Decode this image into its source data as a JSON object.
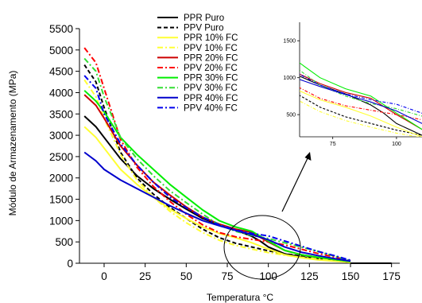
{
  "chart_data": {
    "type": "line",
    "xlabel": "Temperatura °C",
    "ylabel": "Módulo de Armazenamento (MPa)",
    "xlim": [
      -15,
      180
    ],
    "ylim": [
      0,
      5500
    ],
    "x_ticks": [
      0,
      25,
      50,
      75,
      100,
      125,
      150,
      175
    ],
    "y_ticks": [
      0,
      500,
      1000,
      1500,
      2000,
      2500,
      3000,
      3500,
      4000,
      4500,
      5000,
      5500
    ],
    "grid": false,
    "legend_position": "top-center",
    "series": [
      {
        "name": "PPR Puro",
        "color": "#000000",
        "dash": "solid",
        "x": [
          -12,
          -5,
          0,
          10,
          20,
          30,
          40,
          50,
          60,
          70,
          80,
          90,
          95,
          100,
          110,
          120,
          130,
          140,
          150
        ],
        "y": [
          3450,
          3200,
          2950,
          2450,
          2050,
          1750,
          1500,
          1270,
          1050,
          900,
          780,
          630,
          520,
          380,
          220,
          150,
          100,
          60,
          30
        ]
      },
      {
        "name": "PPV Puro",
        "color": "#000000",
        "dash": "dashed",
        "x": [
          -12,
          -5,
          0,
          10,
          20,
          30,
          40,
          50,
          60,
          70,
          80,
          90,
          100,
          110,
          120,
          130,
          140,
          150
        ],
        "y": [
          4650,
          4250,
          3650,
          2600,
          2000,
          1620,
          1310,
          1050,
          800,
          600,
          470,
          380,
          290,
          220,
          170,
          120,
          80,
          40
        ]
      },
      {
        "name": "PPR 10% FC",
        "color": "#ffff33",
        "dash": "solid",
        "x": [
          -12,
          -5,
          0,
          10,
          20,
          30,
          40,
          50,
          60,
          70,
          80,
          90,
          100,
          110,
          120,
          130,
          140,
          150
        ],
        "y": [
          3200,
          2950,
          2700,
          2200,
          1850,
          1550,
          1270,
          1050,
          850,
          700,
          600,
          480,
          330,
          200,
          130,
          80,
          50,
          20
        ]
      },
      {
        "name": "PPV 10% FC",
        "color": "#ffff33",
        "dash": "dashdot",
        "x": [
          -12,
          -5,
          0,
          10,
          20,
          30,
          40,
          50,
          60,
          70,
          80,
          90,
          100,
          110,
          120,
          130,
          140,
          150
        ],
        "y": [
          4300,
          3900,
          3400,
          2550,
          1950,
          1550,
          1220,
          950,
          720,
          540,
          420,
          330,
          250,
          190,
          140,
          100,
          60,
          30
        ]
      },
      {
        "name": "PPR 20% FC",
        "color": "#cc0000",
        "dash": "solid",
        "x": [
          -12,
          -5,
          0,
          10,
          20,
          30,
          40,
          50,
          60,
          70,
          80,
          90,
          100,
          110,
          120,
          130,
          140,
          150
        ],
        "y": [
          3950,
          3700,
          3400,
          2750,
          2300,
          1900,
          1600,
          1320,
          1080,
          920,
          800,
          720,
          500,
          300,
          200,
          140,
          90,
          40
        ]
      },
      {
        "name": "PPV 20% FC",
        "color": "#ff0000",
        "dash": "dashdot",
        "x": [
          -12,
          -5,
          0,
          10,
          20,
          30,
          40,
          50,
          60,
          70,
          80,
          90,
          100,
          110,
          120,
          130,
          140,
          150
        ],
        "y": [
          5050,
          4700,
          4100,
          2900,
          2250,
          1800,
          1450,
          1150,
          900,
          720,
          620,
          560,
          500,
          430,
          330,
          230,
          150,
          60
        ]
      },
      {
        "name": "PPR 30% FC",
        "color": "#00ee00",
        "dash": "solid",
        "x": [
          -12,
          -5,
          0,
          10,
          20,
          30,
          40,
          50,
          60,
          70,
          80,
          90,
          100,
          110,
          120,
          130,
          140,
          150
        ],
        "y": [
          4050,
          3800,
          3550,
          2950,
          2550,
          2200,
          1850,
          1550,
          1250,
          1000,
          850,
          750,
          520,
          300,
          200,
          140,
          90,
          40
        ]
      },
      {
        "name": "PPV 30% FC",
        "color": "#33dd33",
        "dash": "dashdot",
        "x": [
          -12,
          -5,
          0,
          10,
          20,
          30,
          40,
          50,
          60,
          70,
          80,
          90,
          100,
          110,
          120,
          130,
          140,
          150
        ],
        "y": [
          4800,
          4500,
          3900,
          2950,
          2450,
          2050,
          1700,
          1420,
          1150,
          900,
          750,
          650,
          580,
          480,
          380,
          280,
          170,
          60
        ]
      },
      {
        "name": "PPR 40% FC",
        "color": "#0000cc",
        "dash": "solid",
        "x": [
          -12,
          -5,
          0,
          10,
          20,
          30,
          40,
          50,
          60,
          70,
          80,
          90,
          100,
          110,
          120,
          130,
          140,
          150
        ],
        "y": [
          2600,
          2400,
          2200,
          1950,
          1750,
          1550,
          1350,
          1170,
          1000,
          880,
          770,
          670,
          550,
          380,
          260,
          180,
          110,
          50
        ]
      },
      {
        "name": "PPV 40% FC",
        "color": "#0000ee",
        "dash": "dashdot",
        "x": [
          -12,
          -5,
          0,
          10,
          20,
          30,
          40,
          50,
          60,
          70,
          80,
          90,
          100,
          110,
          120,
          130,
          140,
          150
        ],
        "y": [
          4400,
          4100,
          3500,
          2800,
          2300,
          1900,
          1550,
          1300,
          1080,
          900,
          780,
          700,
          640,
          520,
          400,
          280,
          180,
          70
        ]
      }
    ],
    "inset": {
      "x_ticks": [
        75,
        100
      ],
      "y_ticks": [
        500,
        1000,
        1500
      ],
      "xlim": [
        62,
        110
      ],
      "ylim": [
        200,
        1750
      ]
    }
  }
}
